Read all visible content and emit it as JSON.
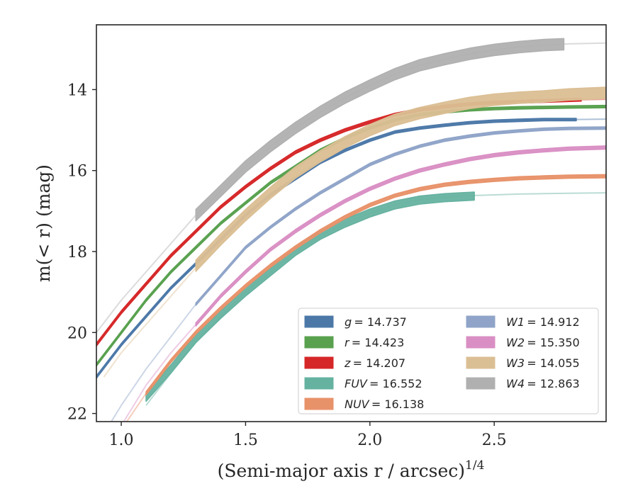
{
  "chart_data": {
    "type": "line",
    "title": "",
    "xlabel": "(Semi-major axis r / arcsec)",
    "xlabel_exponent": "1/4",
    "ylabel": "m(< r) (mag)",
    "xlim": [
      0.9,
      2.95
    ],
    "ylim": [
      22.2,
      12.4
    ],
    "y_inverted": true,
    "grid": false,
    "legend_position": "lower-right",
    "legend_columns": 2,
    "x_ticks": [
      1.0,
      1.5,
      2.0,
      2.5
    ],
    "x_tick_labels": [
      "1.0",
      "1.5",
      "2.0",
      "2.5"
    ],
    "y_ticks": [
      14,
      16,
      18,
      20,
      22
    ],
    "y_tick_labels": [
      "14",
      "16",
      "18",
      "20",
      "22"
    ],
    "series": [
      {
        "name": "g = 14.737",
        "label_main": "g",
        "label_value": "= 14.737",
        "color": "#4c78a8",
        "faint_x": [
          0.9,
          1.0,
          1.1,
          1.2,
          1.3,
          1.4,
          1.5,
          1.6,
          1.7,
          1.8,
          1.9,
          2.0,
          2.1,
          2.2,
          2.3,
          2.4,
          2.5,
          2.6,
          2.7,
          2.8,
          2.95
        ],
        "faint_y": [
          21.1,
          20.3,
          19.6,
          18.9,
          18.3,
          17.7,
          17.1,
          16.6,
          16.2,
          15.8,
          15.5,
          15.25,
          15.05,
          14.95,
          14.88,
          14.82,
          14.78,
          14.76,
          14.74,
          14.74,
          14.73
        ],
        "band_x": [
          0.9,
          1.0,
          1.1,
          1.2,
          1.3,
          1.4,
          1.5,
          1.6,
          1.7,
          1.8,
          1.9,
          2.0,
          2.1,
          2.2,
          2.3,
          2.4,
          2.5,
          2.6,
          2.7,
          2.83
        ],
        "band_y": [
          21.1,
          20.3,
          19.6,
          18.9,
          18.3,
          17.7,
          17.1,
          16.6,
          16.2,
          15.8,
          15.5,
          15.25,
          15.05,
          14.95,
          14.88,
          14.82,
          14.78,
          14.76,
          14.74,
          14.74
        ],
        "band_halfwidth": 0.03
      },
      {
        "name": "r = 14.423",
        "label_main": "r",
        "label_value": "= 14.423",
        "color": "#59a14f",
        "faint_x": [
          0.9,
          1.0,
          1.1,
          1.2,
          1.3,
          1.4,
          1.5,
          1.6,
          1.7,
          1.8,
          1.9,
          2.0,
          2.1,
          2.2,
          2.3,
          2.4,
          2.5,
          2.6,
          2.7,
          2.8,
          2.95
        ],
        "faint_y": [
          20.8,
          20.0,
          19.2,
          18.5,
          17.9,
          17.3,
          16.8,
          16.3,
          15.9,
          15.5,
          15.2,
          14.95,
          14.75,
          14.62,
          14.55,
          14.5,
          14.47,
          14.45,
          14.44,
          14.43,
          14.42
        ],
        "band_x": [
          0.9,
          1.0,
          1.1,
          1.2,
          1.3,
          1.4,
          1.5,
          1.6,
          1.7,
          1.8,
          1.9,
          2.0,
          2.1,
          2.2,
          2.3,
          2.4,
          2.5,
          2.6,
          2.7,
          2.8,
          2.95
        ],
        "band_y": [
          20.8,
          20.0,
          19.2,
          18.5,
          17.9,
          17.3,
          16.8,
          16.3,
          15.9,
          15.5,
          15.2,
          14.95,
          14.75,
          14.62,
          14.55,
          14.5,
          14.47,
          14.45,
          14.44,
          14.43,
          14.42
        ],
        "band_halfwidth": 0.03
      },
      {
        "name": "z = 14.207",
        "label_main": "z",
        "label_value": "= 14.207",
        "color": "#d62728",
        "faint_x": [
          0.9,
          1.0,
          1.1,
          1.2,
          1.3,
          1.4,
          1.5,
          1.6,
          1.7,
          1.8,
          1.9,
          2.0,
          2.1,
          2.2,
          2.3,
          2.4,
          2.5,
          2.6,
          2.7,
          2.8,
          2.95
        ],
        "faint_y": [
          20.3,
          19.5,
          18.8,
          18.1,
          17.5,
          16.9,
          16.4,
          15.95,
          15.55,
          15.25,
          15.0,
          14.8,
          14.62,
          14.5,
          14.42,
          14.36,
          14.32,
          14.3,
          14.28,
          14.26,
          14.24
        ],
        "band_x": [
          0.9,
          1.0,
          1.1,
          1.2,
          1.3,
          1.4,
          1.5,
          1.6,
          1.7,
          1.8,
          1.9,
          2.0,
          2.1,
          2.2,
          2.3,
          2.4,
          2.5,
          2.6,
          2.7,
          2.85
        ],
        "band_y": [
          20.3,
          19.5,
          18.8,
          18.1,
          17.5,
          16.9,
          16.4,
          15.95,
          15.55,
          15.25,
          15.0,
          14.8,
          14.62,
          14.5,
          14.42,
          14.36,
          14.32,
          14.3,
          14.28,
          14.25
        ],
        "band_halfwidth": 0.035
      },
      {
        "name": "FUV = 16.552",
        "label_main": "FUV",
        "label_value": "= 16.552",
        "color": "#66b2a0",
        "faint_x": [
          1.1,
          1.2,
          1.3,
          1.4,
          1.5,
          1.6,
          1.7,
          1.8,
          1.9,
          2.0,
          2.1,
          2.2,
          2.3,
          2.4,
          2.5,
          2.6,
          2.7,
          2.8,
          2.95
        ],
        "faint_y": [
          21.8,
          21.0,
          20.2,
          19.6,
          19.0,
          18.5,
          18.0,
          17.6,
          17.3,
          17.05,
          16.85,
          16.72,
          16.66,
          16.62,
          16.6,
          16.58,
          16.57,
          16.56,
          16.55
        ],
        "band_x": [
          1.1,
          1.2,
          1.3,
          1.4,
          1.5,
          1.6,
          1.7,
          1.8,
          1.9,
          2.0,
          2.1,
          2.2,
          2.3,
          2.42
        ],
        "band_y": [
          21.6,
          20.9,
          20.15,
          19.55,
          19.0,
          18.5,
          18.0,
          17.6,
          17.3,
          17.05,
          16.85,
          16.73,
          16.67,
          16.63
        ],
        "band_halfwidth": 0.1
      },
      {
        "name": "NUV = 16.138",
        "label_main": "NUV",
        "label_value": "= 16.138",
        "color": "#e8926a",
        "faint_x": [
          1.0,
          1.1,
          1.2,
          1.3,
          1.4,
          1.5,
          1.6,
          1.7,
          1.8,
          1.9,
          2.0,
          2.1,
          2.2,
          2.3,
          2.4,
          2.5,
          2.6,
          2.7,
          2.8,
          2.95
        ],
        "faint_y": [
          22.4,
          21.5,
          20.7,
          20.0,
          19.4,
          18.85,
          18.35,
          17.9,
          17.5,
          17.15,
          16.85,
          16.62,
          16.46,
          16.35,
          16.28,
          16.23,
          16.19,
          16.17,
          16.15,
          16.14
        ],
        "band_x": [
          1.1,
          1.2,
          1.3,
          1.4,
          1.5,
          1.6,
          1.7,
          1.8,
          1.9,
          2.0,
          2.1,
          2.2,
          2.3,
          2.4,
          2.5,
          2.6,
          2.7,
          2.8,
          2.95
        ],
        "band_y": [
          21.5,
          20.7,
          20.0,
          19.4,
          18.85,
          18.35,
          17.9,
          17.5,
          17.15,
          16.85,
          16.62,
          16.46,
          16.35,
          16.28,
          16.23,
          16.19,
          16.17,
          16.15,
          16.14
        ],
        "band_halfwidth": 0.04
      },
      {
        "name": "W1 = 14.912",
        "label_main": "W1",
        "label_value": "= 14.912",
        "color": "#8fa4c8",
        "faint_x": [
          0.9,
          1.0,
          1.1,
          1.2,
          1.3,
          1.4,
          1.5,
          1.6,
          1.7,
          1.8,
          1.9,
          2.0,
          2.1,
          2.2,
          2.3,
          2.4,
          2.5,
          2.6,
          2.7,
          2.8,
          2.95
        ],
        "faint_y": [
          22.8,
          21.8,
          20.9,
          20.1,
          19.3,
          18.6,
          17.9,
          17.4,
          16.95,
          16.55,
          16.2,
          15.85,
          15.6,
          15.4,
          15.25,
          15.15,
          15.07,
          15.02,
          14.98,
          14.96,
          14.95
        ],
        "band_x": [
          1.3,
          1.4,
          1.5,
          1.6,
          1.7,
          1.8,
          1.9,
          2.0,
          2.1,
          2.2,
          2.3,
          2.4,
          2.5,
          2.6,
          2.7,
          2.8,
          2.95
        ],
        "band_y": [
          19.3,
          18.6,
          17.9,
          17.4,
          16.95,
          16.55,
          16.2,
          15.85,
          15.6,
          15.4,
          15.25,
          15.15,
          15.07,
          15.02,
          14.98,
          14.96,
          14.95
        ],
        "band_halfwidth": 0.03
      },
      {
        "name": "W2 = 15.350",
        "label_main": "W2",
        "label_value": "= 15.350",
        "color": "#d98fc4",
        "faint_x": [
          0.95,
          1.0,
          1.1,
          1.2,
          1.3,
          1.4,
          1.5,
          1.6,
          1.7,
          1.8,
          1.9,
          2.0,
          2.1,
          2.2,
          2.3,
          2.4,
          2.5,
          2.6,
          2.7,
          2.8,
          2.95
        ],
        "faint_y": [
          22.8,
          22.3,
          21.3,
          20.5,
          19.8,
          19.1,
          18.5,
          17.95,
          17.5,
          17.1,
          16.75,
          16.45,
          16.2,
          16.0,
          15.85,
          15.72,
          15.62,
          15.55,
          15.5,
          15.46,
          15.43
        ],
        "band_x": [
          1.3,
          1.4,
          1.5,
          1.6,
          1.7,
          1.8,
          1.9,
          2.0,
          2.1,
          2.2,
          2.3,
          2.4,
          2.5,
          2.6,
          2.7,
          2.8,
          2.95
        ],
        "band_y": [
          19.8,
          19.1,
          18.5,
          17.95,
          17.5,
          17.1,
          16.75,
          16.45,
          16.2,
          16.0,
          15.85,
          15.72,
          15.62,
          15.55,
          15.5,
          15.46,
          15.43
        ],
        "band_halfwidth": 0.04
      },
      {
        "name": "W3 = 14.055",
        "label_main": "W3",
        "label_value": "= 14.055",
        "color": "#dbbf94",
        "faint_x": [
          0.93,
          1.0,
          1.1,
          1.2,
          1.3,
          1.4,
          1.5,
          1.6,
          1.7,
          1.8,
          1.9,
          2.0,
          2.1,
          2.2,
          2.3,
          2.4,
          2.5,
          2.6,
          2.7,
          2.8,
          2.95
        ],
        "faint_y": [
          21.1,
          20.5,
          19.8,
          19.1,
          18.4,
          17.75,
          17.15,
          16.6,
          16.1,
          15.7,
          15.35,
          15.05,
          14.8,
          14.6,
          14.45,
          14.35,
          14.27,
          14.2,
          14.15,
          14.12,
          14.1
        ],
        "band_x": [
          1.3,
          1.4,
          1.5,
          1.6,
          1.7,
          1.8,
          1.9,
          2.0,
          2.1,
          2.2,
          2.3,
          2.4,
          2.5,
          2.6,
          2.7,
          2.8,
          2.95
        ],
        "band_y": [
          18.35,
          17.7,
          17.1,
          16.55,
          16.05,
          15.65,
          15.3,
          15.0,
          14.75,
          14.58,
          14.45,
          14.33,
          14.25,
          14.2,
          14.17,
          14.12,
          14.08
        ],
        "band_halfwidth": 0.14
      },
      {
        "name": "W4 = 12.863",
        "label_main": "W4",
        "label_value": "= 12.863",
        "color": "#b0b0b0",
        "faint_x": [
          0.9,
          1.0,
          1.1,
          1.2,
          1.3,
          1.4,
          1.5,
          1.6,
          1.7,
          1.8,
          1.9,
          2.0,
          2.1,
          2.2,
          2.3,
          2.4,
          2.5,
          2.6,
          2.7,
          2.8,
          2.95
        ],
        "faint_y": [
          20.0,
          19.2,
          18.5,
          17.8,
          17.1,
          16.5,
          15.9,
          15.4,
          14.95,
          14.55,
          14.2,
          13.9,
          13.62,
          13.4,
          13.25,
          13.12,
          13.02,
          12.95,
          12.9,
          12.87,
          12.85
        ],
        "band_x": [
          1.3,
          1.4,
          1.5,
          1.6,
          1.7,
          1.8,
          1.9,
          2.0,
          2.1,
          2.2,
          2.3,
          2.4,
          2.5,
          2.6,
          2.7,
          2.78
        ],
        "band_y": [
          17.1,
          16.5,
          15.9,
          15.4,
          14.95,
          14.55,
          14.2,
          13.9,
          13.62,
          13.4,
          13.25,
          13.12,
          13.02,
          12.95,
          12.9,
          12.88
        ],
        "band_halfwidth": 0.14
      }
    ]
  }
}
